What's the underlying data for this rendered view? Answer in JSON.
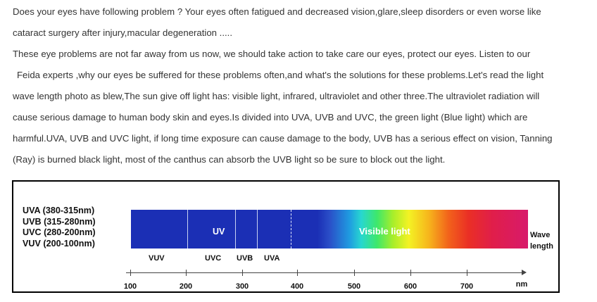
{
  "article": {
    "line1": "Does your eyes have following problem ? Your eyes often fatigued and decreased vision,glare,sleep disorders or even worse like",
    "line2": "cataract surgery after injury,macular degeneration .....",
    "line3": "These eye problems are not far away from us now, we should take action to take care our eyes, protect our eyes. Listen to our",
    "line4_brand": "Feida",
    "line4_rest": " experts ,why our eyes be suffered for these problems often,and what's the solutions for these problems.Let's read the light",
    "line5": "wave length photo as blew,The sun give off light has: visible light, infrared, ultraviolet and other three.The ultraviolet radiation will",
    "line6": "cause serious damage to human body skin and eyes.Is divided into UVA, UVB and UVC, the green light (Blue light) which are",
    "line7": "harmful.UVA, UVB and UVC light, if long time exposure can cause damage to the body, UVB has a serious effect on vision, Tanning",
    "line8": "(Ray) is burned black light, most of the canthus can absorb the UVB light so be sure to block out the light."
  },
  "figure": {
    "legend": [
      "UVA (380-315nm)",
      "UVB (315-280nm)",
      "UVC (280-200nm)",
      "VUV (200-100nm)"
    ],
    "uv_label": "UV",
    "visible_label": "Visible light",
    "wave_label_1": "Wave",
    "wave_label_2": "length",
    "bands": [
      "VUV",
      "UVC",
      "UVB",
      "UVA"
    ],
    "axis_ticks": [
      "100",
      "200",
      "300",
      "400",
      "500",
      "600",
      "700"
    ],
    "axis_unit": "nm"
  }
}
